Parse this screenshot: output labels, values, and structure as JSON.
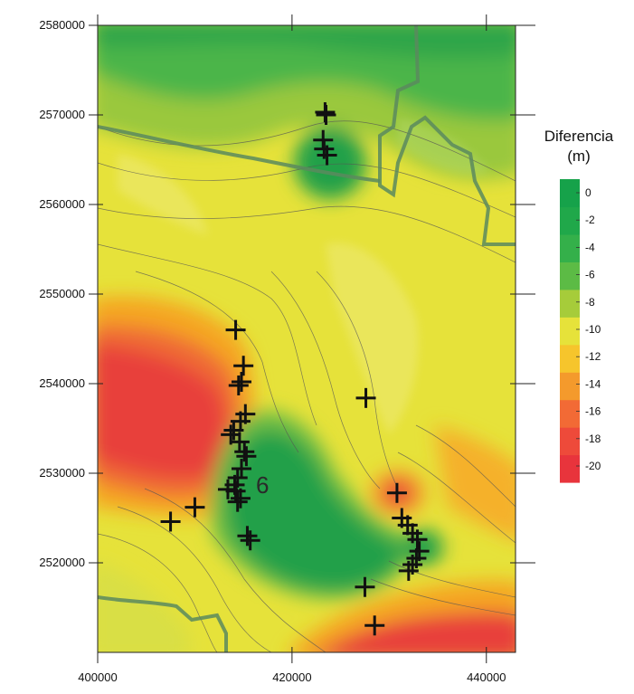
{
  "legend": {
    "title_line1": "Diferencia",
    "title_line2": "(m)",
    "items": [
      {
        "label": "0",
        "color": "#16a24a"
      },
      {
        "label": "-2",
        "color": "#20a84a"
      },
      {
        "label": "-4",
        "color": "#34b04a"
      },
      {
        "label": "-6",
        "color": "#5cbb45"
      },
      {
        "label": "-8",
        "color": "#a6cc3a"
      },
      {
        "label": "-10",
        "color": "#e6e23a"
      },
      {
        "label": "-12",
        "color": "#f6c52c"
      },
      {
        "label": "-14",
        "color": "#f49a2c"
      },
      {
        "label": "-16",
        "color": "#f26a35"
      },
      {
        "label": "-18",
        "color": "#ee4a3a"
      },
      {
        "label": "-20",
        "color": "#e8343c"
      }
    ],
    "extra_bottom_color": "#e8343c"
  },
  "axes": {
    "x_ticks": [
      "400000",
      "420000",
      "440000"
    ],
    "y_ticks": [
      "2580000",
      "2570000",
      "2560000",
      "2550000",
      "2540000",
      "2530000",
      "2520000"
    ],
    "x_range": [
      400000,
      443000
    ],
    "y_range": [
      2510000,
      2580000
    ]
  },
  "wells": [
    [
      423500,
      2570000
    ],
    [
      423200,
      2567200
    ],
    [
      423300,
      2566200
    ],
    [
      423600,
      2565500
    ],
    [
      423400,
      2570300
    ],
    [
      414200,
      2546000
    ],
    [
      415000,
      2542000
    ],
    [
      414800,
      2540200
    ],
    [
      414500,
      2539800
    ],
    [
      415200,
      2536600
    ],
    [
      414700,
      2535800
    ],
    [
      414000,
      2534800
    ],
    [
      413700,
      2534300
    ],
    [
      414600,
      2533500
    ],
    [
      415100,
      2532400
    ],
    [
      415300,
      2531900
    ],
    [
      414800,
      2530500
    ],
    [
      414400,
      2529500
    ],
    [
      414100,
      2528700
    ],
    [
      413400,
      2528200
    ],
    [
      414200,
      2528000
    ],
    [
      414700,
      2527200
    ],
    [
      414400,
      2526800
    ],
    [
      415400,
      2523000
    ],
    [
      415700,
      2522500
    ],
    [
      410000,
      2526200
    ],
    [
      407500,
      2524600
    ],
    [
      427600,
      2538400
    ],
    [
      427500,
      2517300
    ],
    [
      428500,
      2513000
    ],
    [
      430800,
      2527800
    ],
    [
      431300,
      2525000
    ],
    [
      431900,
      2524200
    ],
    [
      432400,
      2523300
    ],
    [
      432900,
      2522600
    ],
    [
      433100,
      2521300
    ],
    [
      432800,
      2520500
    ],
    [
      432400,
      2519800
    ],
    [
      432000,
      2519100
    ]
  ],
  "colors": {
    "green_dark": "#22a04a",
    "green": "#4cb548",
    "green_light": "#9ac83e",
    "yellow_green": "#c8d838",
    "yellow": "#ece43a",
    "orange": "#f5a623",
    "red": "#e8403a"
  },
  "map_label": "6"
}
